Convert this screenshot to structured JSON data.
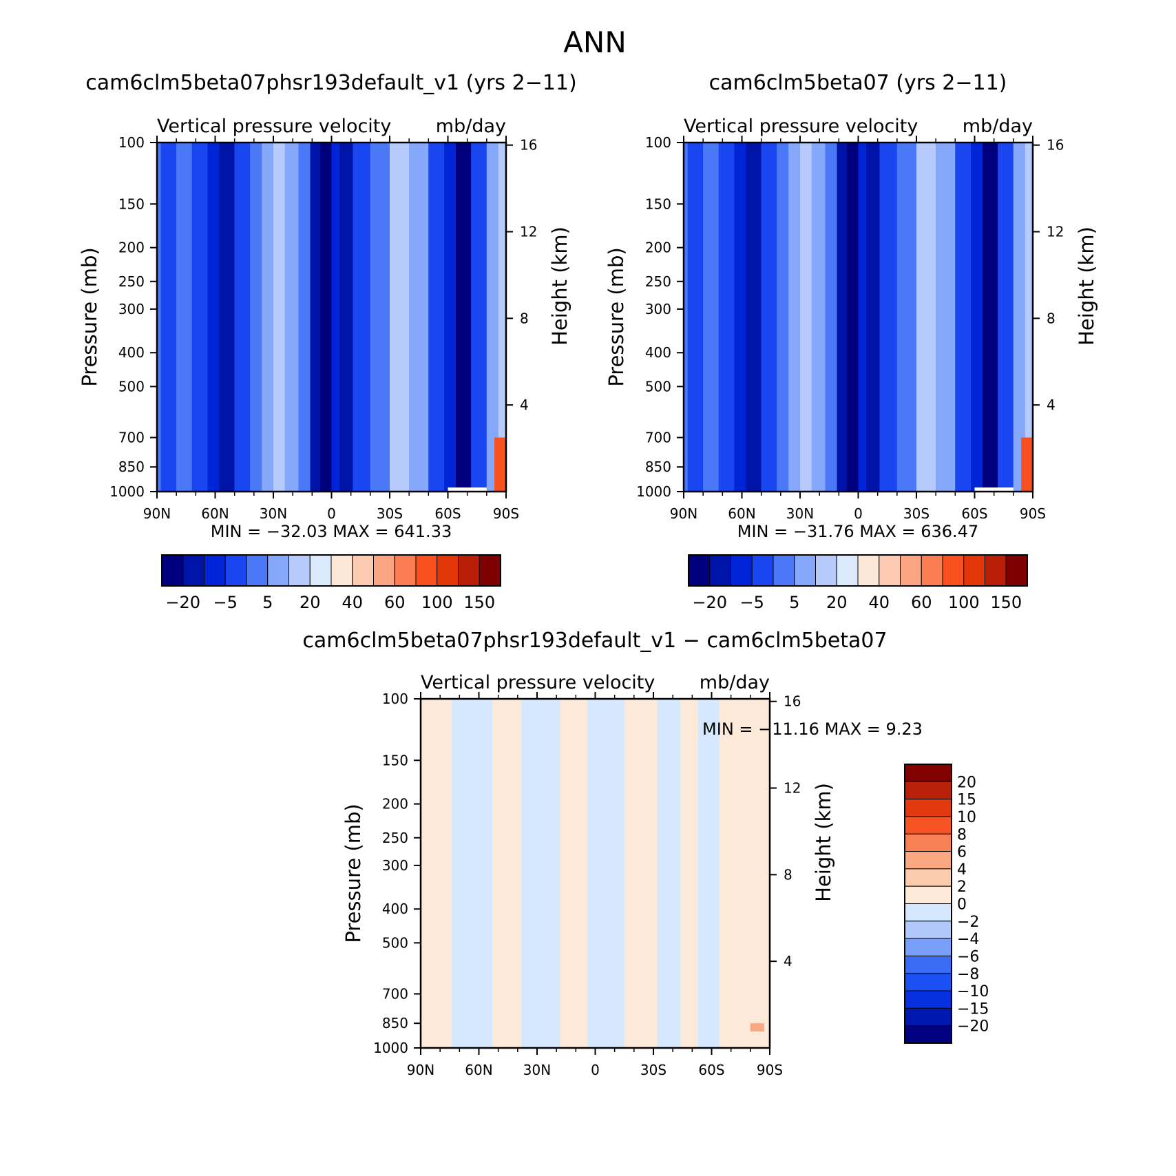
{
  "figure": {
    "title": "ANN"
  },
  "chart_data": [
    {
      "type": "heatmap",
      "title": "cam6clm5beta07phsr193default_v1 (yrs 2−11)",
      "subtitle_left": "Vertical pressure velocity",
      "subtitle_right": "mb/day",
      "xlabel": "",
      "ylabel": "Pressure (mb)",
      "ylabel_right": "Height (km)",
      "x_ticks": [
        "90N",
        "60N",
        "30N",
        "0",
        "30S",
        "60S",
        "90S"
      ],
      "y_ticks": [
        "100",
        "150",
        "200",
        "250",
        "300",
        "400",
        "500",
        "700",
        "850",
        "1000"
      ],
      "y_ticks_right": [
        "16",
        "12",
        "8",
        "4"
      ],
      "stats": "MIN = −32.03   MAX = 641.33",
      "colorbar_labels": [
        "−20",
        "−5",
        "5",
        "20",
        "40",
        "60",
        "100",
        "150"
      ],
      "colorbar_levels": [
        -20,
        -10,
        -5,
        0,
        5,
        10,
        20,
        30,
        40,
        50,
        60,
        80,
        100,
        120,
        150
      ],
      "bands": [
        {
          "lat": 88,
          "fill": 3
        },
        {
          "lat": 80,
          "fill": 4
        },
        {
          "lat": 72,
          "fill": 3
        },
        {
          "lat": 64,
          "fill": 2
        },
        {
          "lat": 58,
          "fill": 1
        },
        {
          "lat": 50,
          "fill": 3
        },
        {
          "lat": 42,
          "fill": 4
        },
        {
          "lat": 36,
          "fill": 5
        },
        {
          "lat": 30,
          "fill": 6
        },
        {
          "lat": 24,
          "fill": 5
        },
        {
          "lat": 17,
          "fill": 4
        },
        {
          "lat": 11,
          "fill": 1
        },
        {
          "lat": 6,
          "fill": 0
        },
        {
          "lat": 0,
          "fill": 2
        },
        {
          "lat": -4,
          "fill": 1
        },
        {
          "lat": -11,
          "fill": 3
        },
        {
          "lat": -20,
          "fill": 4
        },
        {
          "lat": -30,
          "fill": 6
        },
        {
          "lat": -40,
          "fill": 5
        },
        {
          "lat": -50,
          "fill": 3
        },
        {
          "lat": -58,
          "fill": 2
        },
        {
          "lat": -64,
          "fill": 0
        },
        {
          "lat": -72,
          "fill": 3
        },
        {
          "lat": -80,
          "fill": 5
        },
        {
          "lat": -86,
          "fill": 6
        }
      ]
    },
    {
      "type": "heatmap",
      "title": "cam6clm5beta07 (yrs 2−11)",
      "subtitle_left": "Vertical pressure velocity",
      "subtitle_right": "mb/day",
      "xlabel": "",
      "ylabel": "Pressure (mb)",
      "ylabel_right": "Height (km)",
      "x_ticks": [
        "90N",
        "60N",
        "30N",
        "0",
        "30S",
        "60S",
        "90S"
      ],
      "y_ticks": [
        "100",
        "150",
        "200",
        "250",
        "300",
        "400",
        "500",
        "700",
        "850",
        "1000"
      ],
      "y_ticks_right": [
        "16",
        "12",
        "8",
        "4"
      ],
      "stats": "MIN = −31.76   MAX = 636.47",
      "colorbar_labels": [
        "−20",
        "−5",
        "5",
        "20",
        "40",
        "60",
        "100",
        "150"
      ],
      "colorbar_levels": [
        -20,
        -10,
        -5,
        0,
        5,
        10,
        20,
        30,
        40,
        50,
        60,
        80,
        100,
        120,
        150
      ],
      "bands": [
        {
          "lat": 88,
          "fill": 3
        },
        {
          "lat": 80,
          "fill": 4
        },
        {
          "lat": 72,
          "fill": 3
        },
        {
          "lat": 64,
          "fill": 2
        },
        {
          "lat": 58,
          "fill": 1
        },
        {
          "lat": 50,
          "fill": 3
        },
        {
          "lat": 42,
          "fill": 4
        },
        {
          "lat": 36,
          "fill": 5
        },
        {
          "lat": 30,
          "fill": 6
        },
        {
          "lat": 24,
          "fill": 5
        },
        {
          "lat": 17,
          "fill": 4
        },
        {
          "lat": 11,
          "fill": 1
        },
        {
          "lat": 6,
          "fill": 0
        },
        {
          "lat": 0,
          "fill": 2
        },
        {
          "lat": -4,
          "fill": 1
        },
        {
          "lat": -11,
          "fill": 3
        },
        {
          "lat": -20,
          "fill": 4
        },
        {
          "lat": -30,
          "fill": 6
        },
        {
          "lat": -40,
          "fill": 5
        },
        {
          "lat": -50,
          "fill": 3
        },
        {
          "lat": -58,
          "fill": 2
        },
        {
          "lat": -64,
          "fill": 0
        },
        {
          "lat": -72,
          "fill": 3
        },
        {
          "lat": -80,
          "fill": 5
        },
        {
          "lat": -86,
          "fill": 6
        }
      ]
    },
    {
      "type": "heatmap",
      "title": "cam6clm5beta07phsr193default_v1 − cam6clm5beta07",
      "subtitle_left": "Vertical pressure velocity",
      "subtitle_right": "mb/day",
      "xlabel": "",
      "ylabel": "Pressure (mb)",
      "ylabel_right": "Height (km)",
      "x_ticks": [
        "90N",
        "60N",
        "30N",
        "0",
        "30S",
        "60S",
        "90S"
      ],
      "y_ticks": [
        "100",
        "150",
        "200",
        "250",
        "300",
        "400",
        "500",
        "700",
        "850",
        "1000"
      ],
      "y_ticks_right": [
        "16",
        "12",
        "8",
        "4"
      ],
      "stats": "MIN = −11.16   MAX =    9.23",
      "colorbar_labels": [
        "20",
        "15",
        "10",
        "8",
        "6",
        "4",
        "2",
        "0",
        "−2",
        "−4",
        "−6",
        "−8",
        "−10",
        "−15",
        "−20"
      ],
      "colorbar_levels": [
        -20,
        -15,
        -10,
        -8,
        -6,
        -4,
        -2,
        0,
        2,
        4,
        6,
        8,
        10,
        15,
        20
      ],
      "bands": [
        {
          "lat": 90,
          "fill": 8
        },
        {
          "lat": 74,
          "fill": 7
        },
        {
          "lat": 53,
          "fill": 8
        },
        {
          "lat": 38,
          "fill": 7
        },
        {
          "lat": 18,
          "fill": 8
        },
        {
          "lat": 4,
          "fill": 7
        },
        {
          "lat": -15,
          "fill": 8
        },
        {
          "lat": -32,
          "fill": 7
        },
        {
          "lat": -44,
          "fill": 8
        },
        {
          "lat": -53,
          "fill": 7
        },
        {
          "lat": -64,
          "fill": 8
        }
      ]
    }
  ],
  "palette": {
    "absolute": [
      "#00007f",
      "#0013a8",
      "#0024d8",
      "#1a46f2",
      "#4a78f7",
      "#86a8fa",
      "#b6cbfc",
      "#dbe9fd",
      "#fde7d6",
      "#fccbb1",
      "#fba582",
      "#fb7d52",
      "#f9501f",
      "#e33709",
      "#b81f06",
      "#7f0000"
    ],
    "difference": [
      "#000080",
      "#0018b0",
      "#0630e0",
      "#1a50f4",
      "#3a6cf6",
      "#78a0fa",
      "#b0c8fc",
      "#d6e8fd",
      "#fde9d8",
      "#fbccae",
      "#f9a882",
      "#f88053",
      "#f65422",
      "#e23a0e",
      "#b8200a",
      "#820000"
    ]
  }
}
